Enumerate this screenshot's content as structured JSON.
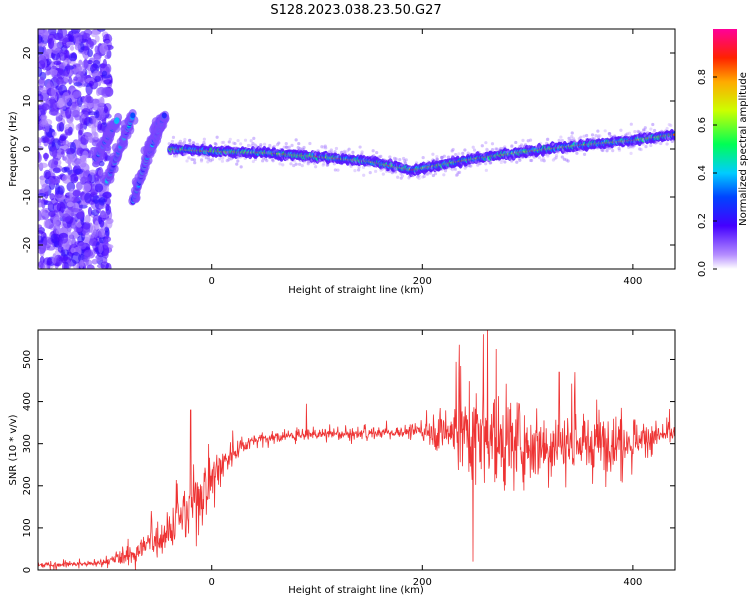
{
  "title": "S128.2023.038.23.50.G27",
  "chart_data": [
    {
      "type": "heatmap",
      "xlabel": "Height of straight line (km)",
      "ylabel": "Frequency (Hz)",
      "xlim": [
        -165,
        440
      ],
      "ylim": [
        -25,
        25
      ],
      "x_ticks": [
        0,
        200,
        400
      ],
      "y_ticks": [
        -20,
        -10,
        0,
        10,
        20
      ],
      "colorbar": {
        "label": "Normalized spectral amplitude",
        "range": [
          0,
          1
        ],
        "ticks": [
          0.0,
          0.2,
          0.4,
          0.6,
          0.8
        ],
        "colormap": "rainbow (violet-blue-cyan-green-yellow-orange-red-pink)"
      },
      "ridge": {
        "x": [
          -40,
          0,
          50,
          100,
          150,
          190,
          250,
          300,
          350,
          400,
          440
        ],
        "frequency_hz": [
          0.0,
          -0.5,
          -0.8,
          -1.6,
          -2.6,
          -4.4,
          -2.0,
          -0.5,
          0.8,
          1.8,
          3.0
        ]
      },
      "diagonal_streaks": [
        {
          "x": [
            -110,
            -90
          ],
          "frequency_hz": [
            -2,
            6
          ]
        },
        {
          "x": [
            -100,
            -75
          ],
          "frequency_hz": [
            -7,
            7
          ]
        },
        {
          "x": [
            -75,
            -50
          ],
          "frequency_hz": [
            -11,
            6
          ]
        },
        {
          "x": [
            -60,
            -45
          ],
          "frequency_hz": [
            -1,
            7
          ]
        }
      ],
      "noise_region_x": [
        -165,
        -105
      ],
      "grid": false
    },
    {
      "type": "line",
      "xlabel": "Height of straight line (km)",
      "ylabel": "SNR (10 * v/v)",
      "xlim": [
        -165,
        440
      ],
      "ylim": [
        0,
        570
      ],
      "x_ticks": [
        0,
        200,
        400
      ],
      "y_ticks": [
        0,
        100,
        200,
        300,
        400,
        500
      ],
      "color": "#ee3333",
      "grid": false,
      "envelope": {
        "x": [
          -165,
          -110,
          -90,
          -70,
          -50,
          -30,
          -15,
          0,
          20,
          40,
          80,
          150,
          200,
          230,
          260,
          300,
          350,
          400,
          440
        ],
        "mean": [
          12,
          15,
          25,
          45,
          80,
          120,
          170,
          220,
          280,
          310,
          320,
          325,
          330,
          330,
          315,
          300,
          300,
          310,
          325
        ],
        "amplitude": [
          6,
          6,
          15,
          30,
          40,
          60,
          80,
          70,
          25,
          12,
          10,
          12,
          15,
          80,
          120,
          80,
          65,
          45,
          25
        ]
      },
      "spikes": [
        {
          "x": -20,
          "snr": 380
        },
        {
          "x": 90,
          "snr": 395
        },
        {
          "x": 235,
          "snr": 535
        },
        {
          "x": 248,
          "snr": 20
        },
        {
          "x": 262,
          "snr": 580
        },
        {
          "x": 330,
          "snr": 470
        },
        {
          "x": 345,
          "snr": 470
        }
      ]
    }
  ]
}
